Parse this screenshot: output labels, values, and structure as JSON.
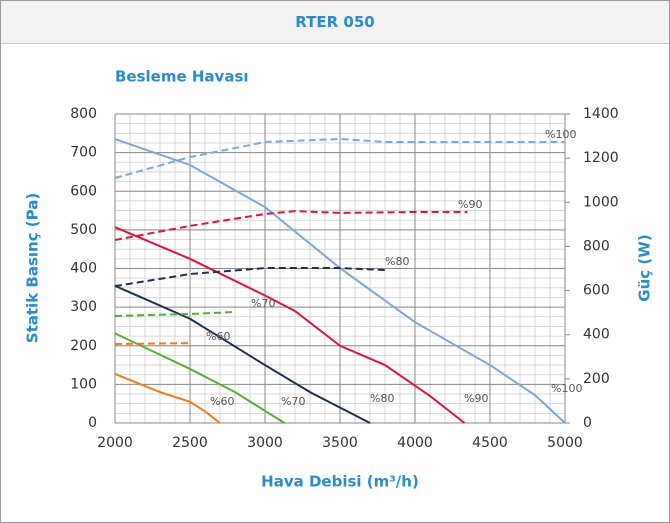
{
  "header": {
    "title": "RTER 050"
  },
  "chart_data": {
    "type": "line",
    "subtitle": "Besleme Havası",
    "x_label": "Hava Debisi (m³/h)",
    "y_label": "Statik Basınç (Pa)",
    "y2_label": "Güç (W)",
    "xlim": [
      2000,
      5000
    ],
    "xticks": [
      2000,
      2500,
      3000,
      3500,
      4000,
      4500,
      5000
    ],
    "ylim": [
      0,
      800
    ],
    "yticks": [
      0,
      100,
      200,
      300,
      400,
      500,
      600,
      700,
      800
    ],
    "y2lim": [
      0,
      1400
    ],
    "y2ticks": [
      0,
      200,
      400,
      600,
      800,
      1000,
      1200,
      1400
    ],
    "grid": true,
    "series": [
      {
        "name": "%100",
        "color": "#7ba7d9",
        "x": [
          2000,
          2500,
          3000,
          3500,
          4000,
          4500,
          4800,
          5000
        ],
        "values": [
          735,
          668,
          559,
          401,
          261,
          150,
          72,
          0
        ]
      },
      {
        "name": "%90",
        "color": "#e0143c",
        "x": [
          2000,
          2500,
          3000,
          3200,
          3500,
          3800,
          4100,
          4330
        ],
        "values": [
          507,
          425,
          330,
          290,
          200,
          150,
          70,
          0
        ]
      },
      {
        "name": "%80",
        "color": "#1f3050",
        "x": [
          2000,
          2500,
          3000,
          3300,
          3700
        ],
        "values": [
          355,
          270,
          150,
          80,
          0
        ]
      },
      {
        "name": "%70",
        "color": "#5aad3a",
        "x": [
          2000,
          2500,
          2800,
          3130
        ],
        "values": [
          232,
          140,
          80,
          0
        ]
      },
      {
        "name": "%60",
        "color": "#f07d1a",
        "x": [
          2000,
          2300,
          2500,
          2600,
          2700
        ],
        "values": [
          127,
          80,
          55,
          30,
          0
        ]
      },
      {
        "name": "%100",
        "color": "#7ba7d9",
        "dashed": true,
        "axis": "y2",
        "x": [
          2000,
          2500,
          3000,
          3500,
          3800,
          4500,
          5000
        ],
        "values": [
          1110,
          1205,
          1273,
          1287,
          1273,
          1273,
          1273
        ]
      },
      {
        "name": "%90",
        "color": "#e0143c",
        "dashed": true,
        "axis": "y2",
        "x": [
          2000,
          2500,
          3000,
          3200,
          3500,
          4000,
          4350
        ],
        "values": [
          829,
          893,
          947,
          960,
          952,
          956,
          956
        ]
      },
      {
        "name": "%80",
        "color": "#1f3050",
        "dashed": true,
        "axis": "y2",
        "x": [
          2000,
          2500,
          3000,
          3500,
          3800
        ],
        "values": [
          620,
          675,
          702,
          702,
          693
        ]
      },
      {
        "name": "%70",
        "color": "#5aad3a",
        "dashed": true,
        "axis": "y2",
        "x": [
          2000,
          2500,
          2800
        ],
        "values": [
          485,
          494,
          503
        ]
      },
      {
        "name": "%60",
        "color": "#f07d1a",
        "dashed": true,
        "axis": "y2",
        "x": [
          2000,
          2500
        ],
        "values": [
          358,
          362
        ]
      }
    ]
  }
}
